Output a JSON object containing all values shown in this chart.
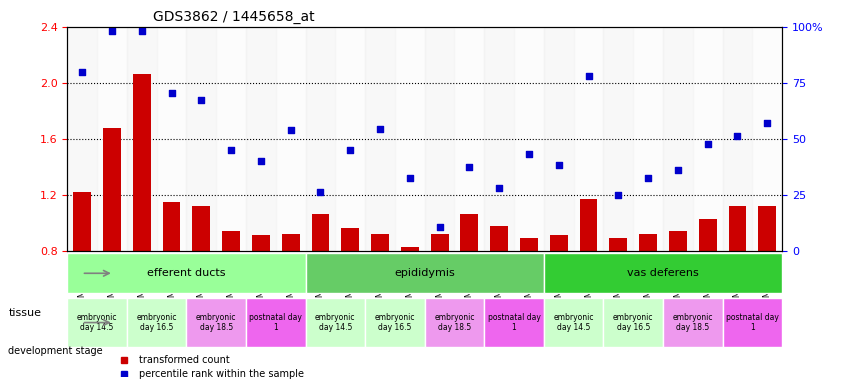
{
  "title": "GDS3862 / 1445658_at",
  "samples": [
    "GSM560923",
    "GSM560924",
    "GSM560925",
    "GSM560926",
    "GSM560927",
    "GSM560928",
    "GSM560929",
    "GSM560930",
    "GSM560931",
    "GSM560932",
    "GSM560933",
    "GSM560934",
    "GSM560935",
    "GSM560936",
    "GSM560937",
    "GSM560938",
    "GSM560939",
    "GSM560940",
    "GSM560941",
    "GSM560942",
    "GSM560943",
    "GSM560944",
    "GSM560945",
    "GSM560946"
  ],
  "bar_values": [
    1.22,
    1.68,
    2.06,
    1.15,
    1.12,
    0.94,
    0.91,
    0.92,
    1.06,
    0.96,
    0.92,
    0.83,
    0.92,
    1.06,
    0.98,
    0.89,
    0.91,
    1.17,
    0.89,
    0.92,
    0.94,
    1.03,
    1.12,
    1.12
  ],
  "scatter_values": [
    2.08,
    2.37,
    2.37,
    1.93,
    1.88,
    1.52,
    1.44,
    1.66,
    1.22,
    1.52,
    1.67,
    1.32,
    0.97,
    1.4,
    1.25,
    1.49,
    1.41,
    2.05,
    1.2,
    1.32,
    1.38,
    1.56,
    1.62,
    1.71
  ],
  "ylim_left": [
    0.8,
    2.4
  ],
  "yticks_left": [
    0.8,
    1.2,
    1.6,
    2.0,
    2.4
  ],
  "yticks_right": [
    0,
    25,
    50,
    75,
    100
  ],
  "ytick_labels_right": [
    "0",
    "25",
    "50",
    "75",
    "100%"
  ],
  "bar_color": "#cc0000",
  "scatter_color": "#0000cc",
  "tissue_groups": [
    {
      "label": "efferent ducts",
      "start": 0,
      "end": 7,
      "color": "#99ff99"
    },
    {
      "label": "epididymis",
      "start": 8,
      "end": 15,
      "color": "#66cc66"
    },
    {
      "label": "vas deferens",
      "start": 16,
      "end": 23,
      "color": "#33cc33"
    }
  ],
  "dev_stage_groups": [
    {
      "label": "embryonic\nday 14.5",
      "start": 0,
      "end": 1,
      "color": "#ccffcc"
    },
    {
      "label": "embryonic\nday 16.5",
      "start": 2,
      "end": 3,
      "color": "#ccffcc"
    },
    {
      "label": "embryonic\nday 18.5",
      "start": 4,
      "end": 5,
      "color": "#ee88ee"
    },
    {
      "label": "postnatal day\n1",
      "start": 6,
      "end": 7,
      "color": "#ff66ff"
    },
    {
      "label": "embryonic\nday 14.5",
      "start": 8,
      "end": 9,
      "color": "#ccffcc"
    },
    {
      "label": "embryonic\nday 16.5",
      "start": 10,
      "end": 11,
      "color": "#ccffcc"
    },
    {
      "label": "embryonic\nday 18.5",
      "start": 12,
      "end": 13,
      "color": "#ee88ee"
    },
    {
      "label": "postnatal day\n1",
      "start": 14,
      "end": 15,
      "color": "#ff66ff"
    },
    {
      "label": "embryonic\nday 14.5",
      "start": 16,
      "end": 17,
      "color": "#ccffcc"
    },
    {
      "label": "embryonic\nday 16.5",
      "start": 18,
      "end": 19,
      "color": "#ccffcc"
    },
    {
      "label": "embryonic\nday 18.5",
      "start": 20,
      "end": 21,
      "color": "#ee88ee"
    },
    {
      "label": "postnatal day\n1",
      "start": 22,
      "end": 23,
      "color": "#ff66ff"
    }
  ],
  "legend_items": [
    {
      "label": "transformed count",
      "color": "#cc0000",
      "marker": "s"
    },
    {
      "label": "percentile rank within the sample",
      "color": "#0000cc",
      "marker": "s"
    }
  ]
}
